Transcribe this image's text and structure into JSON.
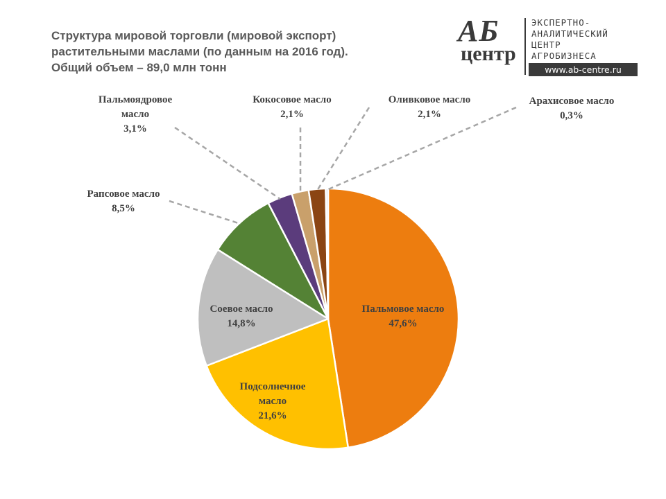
{
  "title": {
    "line1": "Структура мировой торговли (мировой экспорт)",
    "line2": "растительными маслами (по данным на 2016 год).",
    "line3": "Общий объем – 89,0 млн тонн"
  },
  "logo": {
    "mark_top": "АБ",
    "mark_bottom": "центр",
    "line1": "ЭКСПЕРТНО-",
    "line2": "АНАЛИТИЧЕСКИЙ",
    "line3": "ЦЕНТР",
    "line4": "АГРОБИЗНЕСА",
    "url": "www.ab-centre.ru"
  },
  "chart_data": {
    "type": "pie",
    "unit": "%",
    "slices": [
      {
        "label_lines": [
          "Пальмовое масло"
        ],
        "value_text": "47,6%",
        "value": 47.6,
        "color": "#ED7D0F"
      },
      {
        "label_lines": [
          "Подсолнечное",
          "масло"
        ],
        "value_text": "21,6%",
        "value": 21.6,
        "color": "#FFC000"
      },
      {
        "label_lines": [
          "Соевое масло"
        ],
        "value_text": "14,8%",
        "value": 14.8,
        "color": "#BFBFBF"
      },
      {
        "label_lines": [
          "Рапсовое масло"
        ],
        "value_text": "8,5%",
        "value": 8.5,
        "color": "#548235"
      },
      {
        "label_lines": [
          "Пальмоядровое",
          "масло"
        ],
        "value_text": "3,1%",
        "value": 3.1,
        "color": "#5B3C7C"
      },
      {
        "label_lines": [
          "Кокосовое масло"
        ],
        "value_text": "2,1%",
        "value": 2.1,
        "color": "#C9A06B"
      },
      {
        "label_lines": [
          "Оливковое масло"
        ],
        "value_text": "2,1%",
        "value": 2.1,
        "color": "#8B4513"
      },
      {
        "label_lines": [
          "Арахисовое масло"
        ],
        "value_text": "0,3%",
        "value": 0.3,
        "color": "#D6DCE4"
      }
    ]
  }
}
